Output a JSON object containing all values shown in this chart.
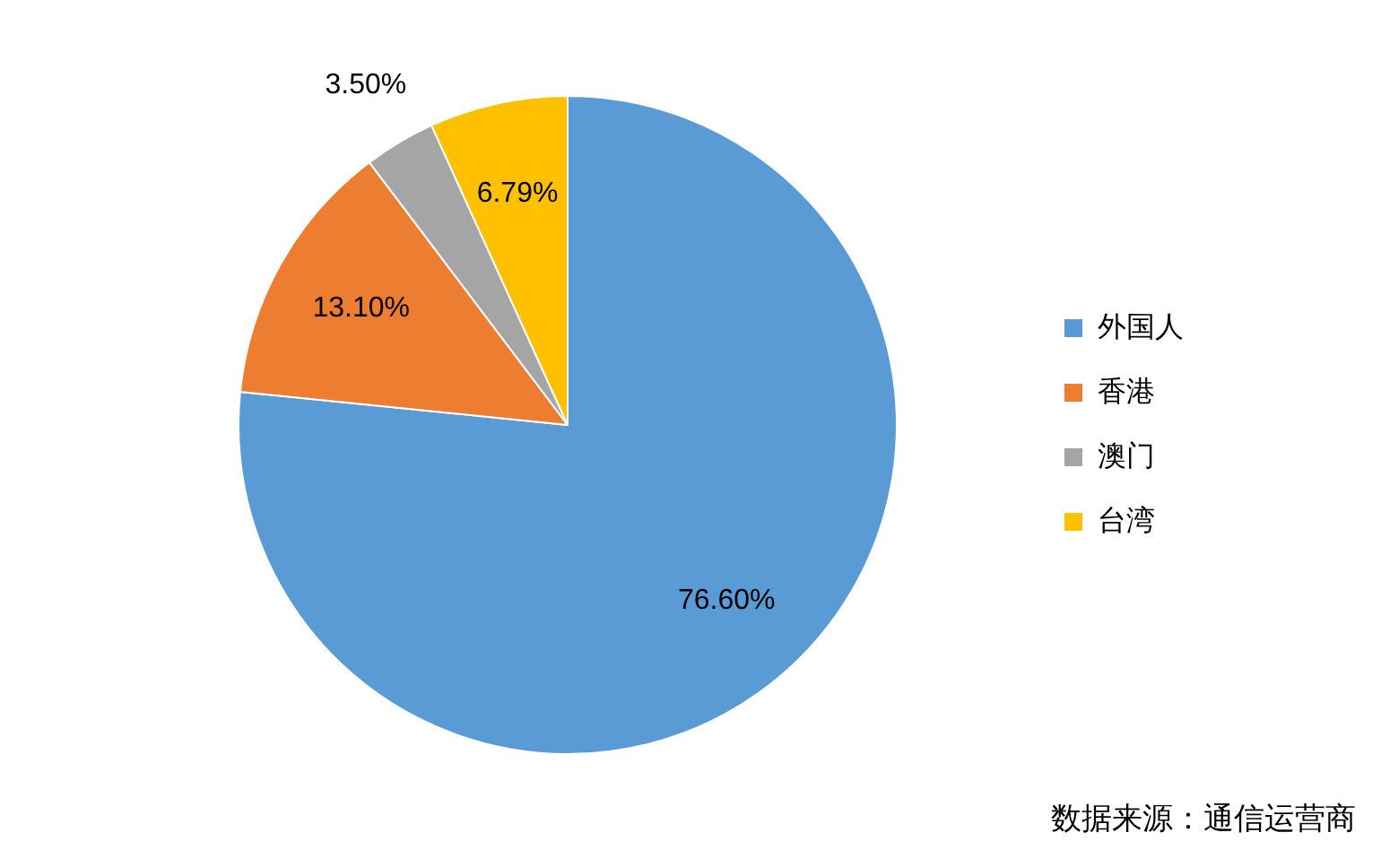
{
  "chart_data": {
    "type": "pie",
    "categories": [
      "外国人",
      "香港",
      "澳门",
      "台湾"
    ],
    "values": [
      76.6,
      13.1,
      3.5,
      6.79
    ],
    "colors": [
      "#5b9bd5",
      "#ed7d31",
      "#a5a5a5",
      "#ffc000"
    ],
    "value_labels": [
      "76.60%",
      "13.10%",
      "3.50%",
      "6.79%"
    ],
    "legend": "right",
    "annotations": [
      "数据来源：通信运营商"
    ]
  }
}
